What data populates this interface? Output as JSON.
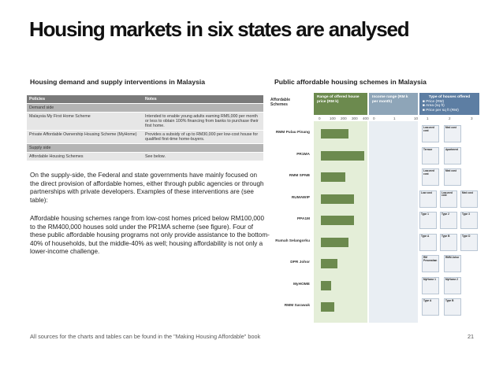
{
  "title": "Housing markets in six states are analysed",
  "left_heading": "Housing demand and supply interventions in Malaysia",
  "right_heading": "Public affordable housing schemes in Malaysia",
  "policies_table": {
    "headers": [
      "Policies",
      "Notes"
    ],
    "rows": [
      {
        "kind": "section",
        "policy": "Demand side",
        "notes": ""
      },
      {
        "kind": "row",
        "policy": "Malaysia My First Home Scheme",
        "notes": "Intended to enable young adults earning RM5,000 per month or less to obtain 100% financing from banks to purchase their first home."
      },
      {
        "kind": "row",
        "policy": "Private Affordable Ownership Housing Scheme (MyHome)",
        "notes": "Provides a subsidy of up to RM30,000 per low-cost house for qualified first-time home-buyers."
      },
      {
        "kind": "section",
        "policy": "Supply side",
        "notes": ""
      },
      {
        "kind": "row",
        "policy": "Affordable Housing Schemes",
        "notes": "See below."
      }
    ]
  },
  "paragraph1": "On the supply-side, the Federal and state governments have mainly focused on the direct provision of affordable homes, either through public agencies or through partnerships with private developers. Examples of these interventions are (see table):",
  "paragraph2": "Affordable housing schemes range from low-cost homes priced below RM100,000 to the RM400,000 houses sold under the PR1MA scheme (see figure). Four of these public affordable housing programs not only provide assistance to the bottom-40% of households, but the middle-40% as well; housing affordability is not only a lower-income challenge.",
  "footer": "All sources for the charts and tables can be found in the \"Making Housing Affordable\" book",
  "page_number": "21",
  "schemes_chart": {
    "col_affordable": "Affordable Schemes",
    "col_range": "Range of offered house price (RM k)",
    "col_income": "Income range (RM k per month)",
    "col_types": "Type of houses offered",
    "types_legend": [
      "Price (RM)",
      "Area (sq ft)",
      "Price per sq ft (RM)"
    ],
    "price_ticks": [
      "0",
      "100",
      "200",
      "300",
      "400"
    ],
    "income_ticks": [
      "0",
      "1",
      "10"
    ],
    "type_ticks": [
      "1",
      "2",
      "3"
    ],
    "schemes": [
      {
        "name": "RMM Pulau Pinang",
        "price_high": 250,
        "cards": [
          "Low-med cost",
          "Med cost"
        ]
      },
      {
        "name": "PR1MA",
        "price_high": 390,
        "cards": [
          "Terrace",
          "Apartment"
        ]
      },
      {
        "name": "RMM SPNB",
        "price_high": 220,
        "cards": [
          "Low-med cost",
          "Med cost"
        ]
      },
      {
        "name": "RUMAWIP",
        "price_high": 300,
        "cards": [
          "Low cost",
          "Low-med cost",
          "Med cost"
        ]
      },
      {
        "name": "PPA1M",
        "price_high": 300,
        "cards": [
          "Type 1",
          "Type 2",
          "Type 3"
        ]
      },
      {
        "name": "Rumah Selangorku",
        "price_high": 250,
        "cards": [
          "Type A",
          "Type B",
          "Type D"
        ]
      },
      {
        "name": "DPR Johor",
        "price_high": 150,
        "cards": [
          "RM Perumahan",
          "RMM Johor"
        ]
      },
      {
        "name": "MyHOME",
        "price_high": 90,
        "cards": [
          "MyHome 1",
          "MyHome 2"
        ]
      },
      {
        "name": "RMM Sarawak",
        "price_high": 120,
        "cards": [
          "Type A",
          "Type B"
        ]
      }
    ]
  }
}
